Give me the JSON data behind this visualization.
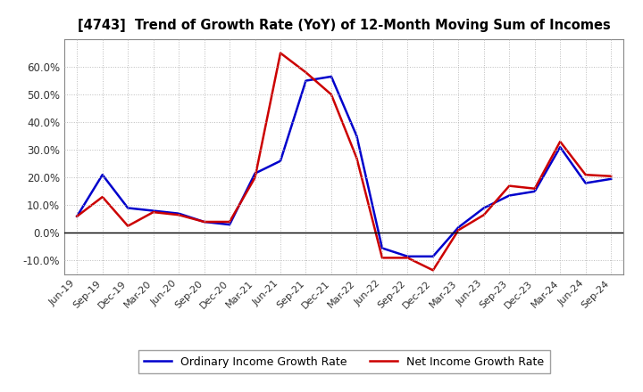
{
  "title": "[4743]  Trend of Growth Rate (YoY) of 12-Month Moving Sum of Incomes",
  "x_labels": [
    "Jun-19",
    "Sep-19",
    "Dec-19",
    "Mar-20",
    "Jun-20",
    "Sep-20",
    "Dec-20",
    "Mar-21",
    "Jun-21",
    "Sep-21",
    "Dec-21",
    "Mar-22",
    "Jun-22",
    "Sep-22",
    "Dec-22",
    "Mar-23",
    "Jun-23",
    "Sep-23",
    "Dec-23",
    "Mar-24",
    "Jun-24",
    "Sep-24"
  ],
  "ordinary_income": [
    6.0,
    21.0,
    9.0,
    8.0,
    7.0,
    4.0,
    3.0,
    21.5,
    26.0,
    55.0,
    56.5,
    35.0,
    -5.5,
    -8.5,
    -8.5,
    2.0,
    9.0,
    13.5,
    15.0,
    31.0,
    18.0,
    19.5
  ],
  "net_income": [
    6.0,
    13.0,
    2.5,
    7.5,
    6.5,
    4.0,
    4.0,
    20.0,
    65.0,
    58.0,
    50.0,
    27.0,
    -9.0,
    -9.0,
    -13.5,
    1.0,
    6.5,
    17.0,
    16.0,
    33.0,
    21.0,
    20.5
  ],
  "ordinary_color": "#0000cc",
  "net_color": "#cc0000",
  "ylim": [
    -15,
    70
  ],
  "yticks": [
    -10.0,
    0.0,
    10.0,
    20.0,
    30.0,
    40.0,
    50.0,
    60.0
  ],
  "grid_color": "#bbbbbb",
  "background_color": "#ffffff",
  "legend_ordinary": "Ordinary Income Growth Rate",
  "legend_net": "Net Income Growth Rate"
}
